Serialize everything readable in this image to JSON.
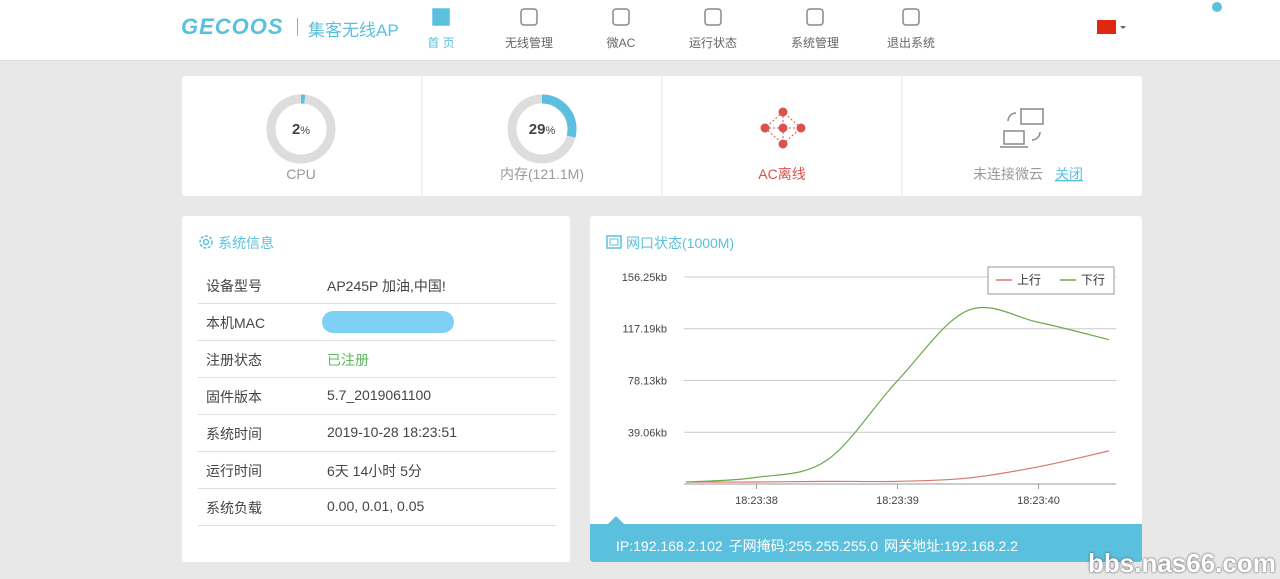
{
  "header": {
    "logo": "GECOOS",
    "product": "集客无线AP",
    "nav": [
      "首 页",
      "无线管理",
      "微AC",
      "运行状态",
      "系统管理",
      "退出系统"
    ]
  },
  "stats": {
    "cpu": {
      "value": 2,
      "unit": "%",
      "label": "CPU"
    },
    "memory": {
      "value": 29,
      "unit": "%",
      "label": "内存(121.1M)"
    },
    "ac": "AC离线",
    "cloud": {
      "status": "未连接微云",
      "link": "关闭"
    }
  },
  "sysinfo": {
    "title": "系统信息",
    "rows": [
      [
        "设备型号",
        "AP245P 加油,中国!"
      ],
      [
        "本机MAC"
      ],
      [
        "注册状态",
        "已注册"
      ],
      [
        "固件版本",
        "5.7_2019061100"
      ],
      [
        "系统时间",
        "2019-10-28 18:23:51"
      ],
      [
        "运行时间",
        "6天 14小时 5分"
      ],
      [
        "系统负载",
        "0.00, 0.01, 0.05"
      ]
    ]
  },
  "network": {
    "title": "网口状态(1000M)",
    "info": [
      "IP:192.168.2.102",
      "子网掩码:255.255.255.0",
      "网关地址:192.168.2.2"
    ]
  },
  "chart_data": {
    "type": "line",
    "categories": [
      null,
      "18:23:38",
      null,
      "18:23:39",
      null,
      "18:23:40",
      null
    ],
    "series": [
      {
        "name": "上行",
        "color": "#d9776b",
        "values": [
          1.5,
          1.5,
          2,
          2,
          4.5,
          13,
          25
        ]
      },
      {
        "name": "下行",
        "color": "#6aa84f",
        "values": [
          1.5,
          5,
          18,
          78,
          131,
          122,
          109
        ]
      }
    ],
    "ylim": [
      0,
      156.25
    ],
    "yticks": [
      {
        "value": 39.06,
        "label": "39.06kb"
      },
      {
        "value": 78.13,
        "label": "78.13kb"
      },
      {
        "value": 117.19,
        "label": "117.19kb"
      },
      {
        "value": 156.25,
        "label": "156.25kb"
      }
    ],
    "grid": true,
    "legend": "top-right"
  },
  "watermark": "bbs.nas66.com"
}
